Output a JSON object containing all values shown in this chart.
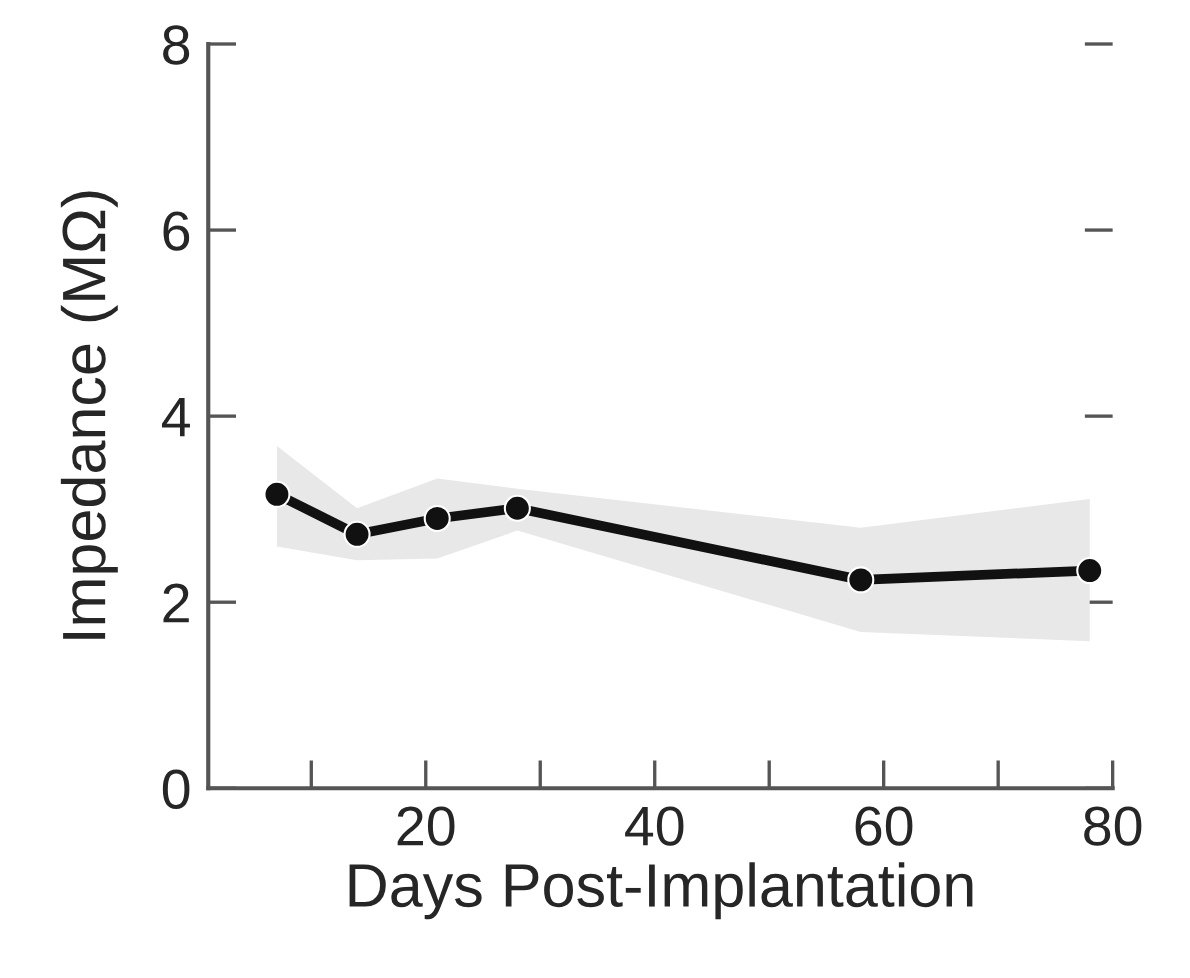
{
  "chart_data": {
    "type": "line",
    "xlabel": "Days Post-Implantation",
    "ylabel": "Impedance (MΩ)",
    "x": [
      7,
      14,
      21,
      28,
      58,
      78
    ],
    "series": [
      {
        "color": "#111111",
        "values": [
          3.16,
          2.73,
          2.9,
          3.01,
          2.24,
          2.34
        ],
        "lower": [
          2.6,
          2.45,
          2.47,
          2.77,
          1.68,
          1.58
        ],
        "upper": [
          3.68,
          3.01,
          3.33,
          3.22,
          2.8,
          3.11
        ]
      }
    ],
    "xlim": [
      1,
      80
    ],
    "xticks": [
      {
        "value": 10,
        "label": null
      },
      20,
      {
        "value": 30,
        "label": null
      },
      40,
      {
        "value": 50,
        "label": null
      },
      60,
      {
        "value": 70,
        "label": null
      },
      80
    ],
    "ylim": [
      0,
      8
    ],
    "yticks": [
      0,
      2,
      4,
      6,
      8
    ],
    "marker": "circle",
    "line_style": "solid",
    "grid": false
  }
}
